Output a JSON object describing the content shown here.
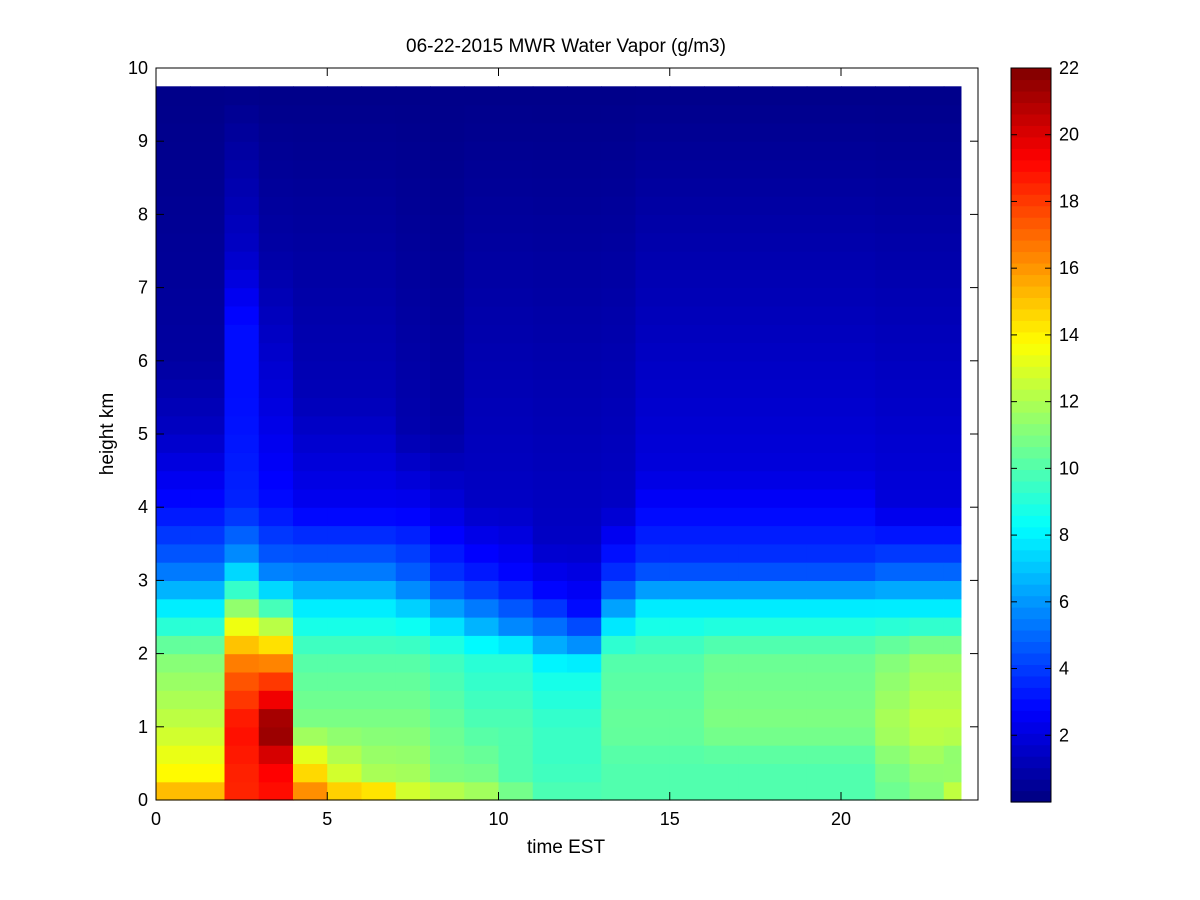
{
  "chart_data": {
    "type": "heatmap",
    "title": "06-22-2015 MWR Water Vapor (g/m3)",
    "xlabel": "time EST",
    "ylabel": "height km",
    "xlim": [
      0,
      24
    ],
    "ylim": [
      0,
      10
    ],
    "x_ticks": [
      0,
      5,
      10,
      15,
      20
    ],
    "y_ticks": [
      0,
      1,
      2,
      3,
      4,
      5,
      6,
      7,
      8,
      9,
      10
    ],
    "colorbar": {
      "range": [
        0,
        22
      ],
      "ticks": [
        2,
        4,
        6,
        8,
        10,
        12,
        14,
        16,
        18,
        20,
        22
      ],
      "colormap": "jet"
    },
    "grid": false,
    "x": [
      0,
      1,
      2,
      3,
      4,
      5,
      6,
      7,
      8,
      9,
      10,
      11,
      12,
      13,
      14,
      15,
      16,
      17,
      18,
      19,
      20,
      21,
      22,
      23
    ],
    "profiles": [
      {
        "time": 0,
        "h": [
          0,
          0.3,
          1,
          2,
          2.6,
          3.2,
          4,
          5,
          6,
          9.75
        ],
        "v": [
          16,
          14,
          12.5,
          11,
          8,
          5,
          3,
          1.5,
          0.7,
          0.2
        ]
      },
      {
        "time": 1,
        "h": [
          0,
          0.3,
          1,
          2,
          2.6,
          3.2,
          4,
          5,
          6,
          9.75
        ],
        "v": [
          16,
          14,
          12.5,
          11,
          8,
          5,
          3,
          1.5,
          0.7,
          0.2
        ]
      },
      {
        "time": 2,
        "h": [
          0,
          0.3,
          1,
          1.8,
          2.3,
          2.8,
          3.3,
          4,
          5.5,
          6.5,
          7.5,
          8.8,
          9.75
        ],
        "v": [
          18.5,
          18.5,
          19,
          17,
          14,
          10,
          6,
          3.5,
          3,
          3,
          1.5,
          0.8,
          0.2
        ]
      },
      {
        "time": 3,
        "h": [
          0,
          0.3,
          0.6,
          1,
          1.3,
          1.8,
          2.3,
          2.8,
          3.2,
          4,
          5.5,
          7.5,
          9.75
        ],
        "v": [
          19,
          19,
          20,
          22,
          20,
          17,
          13,
          8,
          5,
          3,
          2,
          0.8,
          0.2
        ]
      },
      {
        "time": 4,
        "h": [
          0,
          0.3,
          1,
          2,
          2.6,
          3.2,
          4,
          5.5,
          9.75
        ],
        "v": [
          17,
          15,
          11,
          10,
          8,
          5,
          2.5,
          1.2,
          0.2
        ]
      },
      {
        "time": 5,
        "h": [
          0,
          0.3,
          1,
          2,
          2.6,
          3.2,
          4,
          5.5,
          9.75
        ],
        "v": [
          16,
          13,
          11,
          10,
          8,
          5,
          2.5,
          1.2,
          0.2
        ]
      },
      {
        "time": 6,
        "h": [
          0,
          0.3,
          1,
          2,
          2.6,
          3.2,
          4,
          5.5,
          9.75
        ],
        "v": [
          16,
          12,
          11,
          10,
          8,
          5,
          2.5,
          1.2,
          0.2
        ]
      },
      {
        "time": 7,
        "h": [
          0,
          0.2,
          1,
          2,
          2.5,
          3,
          4,
          5,
          9.75
        ],
        "v": [
          14,
          12,
          11,
          10,
          8,
          5,
          2.5,
          1,
          0.2
        ]
      },
      {
        "time": 8,
        "h": [
          0,
          0.2,
          1,
          2,
          2.4,
          3,
          4,
          5,
          9.75
        ],
        "v": [
          14,
          11,
          10.5,
          9.5,
          7.5,
          4,
          2,
          0.8,
          0.2
        ]
      },
      {
        "time": 9,
        "h": [
          0,
          0.2,
          1,
          2,
          2.3,
          3,
          4,
          9.75
        ],
        "v": [
          13,
          11,
          10,
          9,
          7,
          3.5,
          1.5,
          0.2
        ]
      },
      {
        "time": 10,
        "h": [
          0,
          0.2,
          1,
          2,
          2.3,
          3,
          4,
          9.75
        ],
        "v": [
          12,
          10,
          10,
          9,
          6,
          3,
          1.5,
          0.2
        ]
      },
      {
        "time": 11,
        "h": [
          0,
          0.5,
          1,
          1.8,
          2.2,
          2.8,
          3.5,
          9.75
        ],
        "v": [
          10,
          9.5,
          9.5,
          8.5,
          6,
          3,
          1.5,
          0.2
        ]
      },
      {
        "time": 12,
        "h": [
          0,
          0.5,
          1,
          1.8,
          2.1,
          2.6,
          3.5,
          9.75
        ],
        "v": [
          10,
          9.5,
          9.5,
          8.5,
          6,
          3,
          1.5,
          0.2
        ]
      },
      {
        "time": 13,
        "h": [
          0,
          0.5,
          1,
          2,
          2.5,
          3,
          4,
          9.75
        ],
        "v": [
          10,
          10,
          10.5,
          10,
          7,
          4,
          1.5,
          0.2
        ]
      },
      {
        "time": 14,
        "h": [
          0,
          0.5,
          1,
          2,
          2.6,
          3.2,
          4.5,
          9.75
        ],
        "v": [
          10,
          10,
          10.5,
          10,
          8,
          4,
          2,
          0.2
        ]
      },
      {
        "time": 15,
        "h": [
          0,
          0.5,
          1,
          2,
          2.6,
          3.2,
          4.5,
          9.75
        ],
        "v": [
          10,
          10,
          10.5,
          10,
          8,
          4,
          2,
          0.2
        ]
      },
      {
        "time": 16,
        "h": [
          0,
          0.5,
          1,
          2,
          2.6,
          3.2,
          4.5,
          9.75
        ],
        "v": [
          10,
          10,
          11,
          10.5,
          8,
          4,
          2,
          0.2
        ]
      },
      {
        "time": 17,
        "h": [
          0,
          0.5,
          1,
          2,
          2.6,
          3.2,
          4.5,
          9.75
        ],
        "v": [
          10,
          10,
          11,
          10.5,
          8,
          4,
          2,
          0.2
        ]
      },
      {
        "time": 18,
        "h": [
          0,
          0.5,
          1,
          2,
          2.6,
          3.2,
          4.5,
          9.75
        ],
        "v": [
          10,
          10,
          11,
          10.5,
          8,
          4,
          2,
          0.2
        ]
      },
      {
        "time": 19,
        "h": [
          0,
          0.5,
          1,
          2,
          2.6,
          3.2,
          4.5,
          9.75
        ],
        "v": [
          10,
          10,
          11,
          10.5,
          8,
          4,
          2,
          0.2
        ]
      },
      {
        "time": 20,
        "h": [
          0,
          0.5,
          1,
          2,
          2.6,
          3.2,
          4.5,
          9.75
        ],
        "v": [
          10,
          10,
          11,
          10.5,
          8,
          4,
          2,
          0.2
        ]
      },
      {
        "time": 21,
        "h": [
          0,
          0.5,
          1,
          2,
          2.6,
          3.2,
          4,
          9.75
        ],
        "v": [
          10.5,
          11,
          12,
          11,
          8,
          4.5,
          2,
          0.2
        ]
      },
      {
        "time": 22,
        "h": [
          0,
          0.5,
          1,
          2,
          2.6,
          3.2,
          4,
          9.75
        ],
        "v": [
          11,
          11.5,
          12.5,
          11.5,
          8,
          4.5,
          2,
          0.2
        ]
      },
      {
        "time": 23,
        "h": [
          0,
          0.2,
          0.5,
          1,
          2,
          2.6,
          3.2,
          4,
          9.75
        ],
        "v": [
          13,
          12,
          11,
          12.5,
          11.5,
          8,
          4.5,
          2,
          0.2
        ]
      }
    ],
    "height_step": 0.25,
    "height_top": 9.75
  }
}
